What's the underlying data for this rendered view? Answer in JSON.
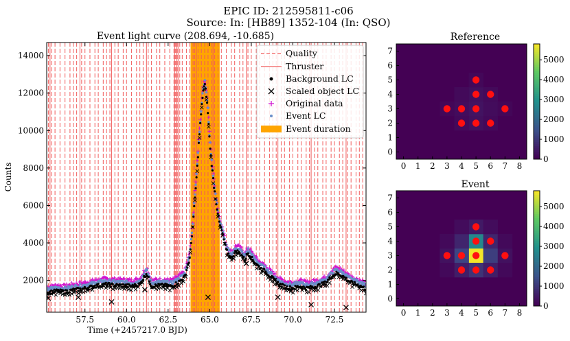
{
  "figure": {
    "suptitle_line1": "EPIC ID: 212595811-c06",
    "suptitle_line2": "Source: In: [HB89] 1352-104 (In: QSO)"
  },
  "chart_data": [
    {
      "type": "scatter",
      "title": "Event light curve (208.694, -10.685)",
      "xlabel": "Time (+2457217.0 BJD)",
      "ylabel": "Counts",
      "xlim": [
        55.2,
        74.4
      ],
      "ylim": [
        300,
        14700
      ],
      "xticks": [
        57.5,
        60.0,
        62.5,
        65.0,
        67.5,
        70.0,
        72.5
      ],
      "xtick_labels": [
        "57.5",
        "60.0",
        "62.5",
        "65.0",
        "67.5",
        "70.0",
        "72.5"
      ],
      "yticks": [
        2000,
        4000,
        6000,
        8000,
        10000,
        12000,
        14000
      ],
      "ytick_labels": [
        "2000",
        "4000",
        "6000",
        "8000",
        "10000",
        "12000",
        "14000"
      ],
      "event_duration": [
        63.85,
        65.6
      ],
      "quality_lines": [
        55.3,
        55.5,
        55.7,
        56.0,
        56.3,
        56.6,
        56.8,
        57.0,
        57.3,
        57.5,
        57.8,
        58.1,
        58.3,
        58.6,
        58.8,
        59.0,
        59.3,
        59.5,
        59.8,
        60.0,
        60.3,
        60.6,
        60.8,
        61.0,
        61.3,
        61.5,
        61.8,
        62.0,
        62.3,
        62.6,
        62.85,
        62.95,
        63.05,
        63.2,
        63.35,
        63.6,
        63.8,
        64.0,
        64.1,
        64.3,
        64.5,
        64.7,
        64.9,
        65.1,
        65.3,
        65.5,
        65.7,
        66.0,
        66.3,
        66.5,
        66.8,
        67.0,
        67.3,
        67.5,
        67.8,
        68.0,
        68.3,
        68.6,
        68.8,
        69.0,
        69.3,
        69.5,
        69.8,
        70.0,
        70.3,
        70.5,
        70.8,
        71.0,
        71.3,
        71.5,
        71.8,
        72.0,
        72.3,
        72.5,
        72.8,
        73.0,
        73.3,
        73.5,
        73.8,
        74.0,
        74.2
      ],
      "thruster_lines": [
        55.4,
        57.2,
        59.1,
        61.2,
        62.9,
        63.0,
        63.1,
        64.2,
        65.2,
        67.2,
        69.1,
        71.1,
        73.2
      ],
      "light_curve_nodes": {
        "x": [
          55.2,
          55.8,
          56.3,
          56.8,
          57.3,
          57.8,
          58.3,
          58.8,
          59.3,
          59.8,
          60.3,
          60.8,
          61.2,
          61.5,
          61.9,
          62.3,
          62.7,
          63.1,
          63.5,
          63.8,
          64.0,
          64.2,
          64.35,
          64.5,
          64.6,
          64.7,
          64.8,
          64.9,
          65.0,
          65.1,
          65.25,
          65.4,
          65.6,
          65.8,
          66.0,
          66.3,
          66.6,
          66.9,
          67.1,
          67.3,
          67.6,
          68.0,
          68.4,
          68.8,
          69.2,
          69.6,
          70.0,
          70.4,
          70.8,
          71.2,
          71.6,
          72.0,
          72.3,
          72.6,
          72.9,
          73.2,
          73.5,
          73.8,
          74.1,
          74.4
        ],
        "y": [
          1450,
          1550,
          1500,
          1600,
          1650,
          1750,
          1850,
          1900,
          1850,
          1850,
          1800,
          1900,
          2500,
          1800,
          1850,
          1850,
          1800,
          2000,
          2300,
          3300,
          5200,
          7500,
          9500,
          11200,
          12200,
          12600,
          12000,
          11000,
          9500,
          8500,
          7200,
          6200,
          5100,
          4500,
          3700,
          3300,
          3700,
          3500,
          3200,
          3600,
          3200,
          2800,
          2550,
          2200,
          1900,
          1750,
          1700,
          1800,
          1700,
          1750,
          1850,
          2000,
          2300,
          2500,
          2400,
          2200,
          2000,
          1900,
          1800,
          1650
        ]
      },
      "scaled_outliers": {
        "x": [
          55.3,
          57.1,
          59.1,
          61.1,
          64.9,
          67.2,
          68.9,
          69.1,
          71.1,
          73.2
        ],
        "y": [
          1050,
          1100,
          850,
          1500,
          1100,
          2900,
          2000,
          1100,
          700,
          550
        ]
      },
      "legend": {
        "location": "upper right",
        "entries": [
          {
            "label": "Quality",
            "style": "dashed-line",
            "color": "#f15a5a"
          },
          {
            "label": "Thruster",
            "style": "solid-line",
            "color": "#f15a5a"
          },
          {
            "label": "Background LC",
            "style": "dot",
            "color": "#000000"
          },
          {
            "label": "Scaled object LC",
            "style": "x",
            "color": "#000000"
          },
          {
            "label": "Original data",
            "style": "plus",
            "color": "#d012d0"
          },
          {
            "label": "Event LC",
            "style": "small-dot",
            "color": "#6b8fc9"
          },
          {
            "label": "Event duration",
            "style": "patch",
            "color": "#ffa500"
          }
        ]
      }
    },
    {
      "type": "heatmap",
      "title": "Reference",
      "xticks": [
        "0",
        "1",
        "2",
        "3",
        "4",
        "5",
        "6",
        "7",
        "8"
      ],
      "yticks": [
        "0",
        "1",
        "2",
        "3",
        "4",
        "5",
        "6",
        "7"
      ],
      "colorbar_ticks": [
        "0",
        "1000",
        "2000",
        "3000",
        "4000",
        "5000"
      ],
      "colorbar_range": [
        0,
        5800
      ],
      "cells": [
        {
          "x": 5,
          "y": 4,
          "value": 260
        },
        {
          "x": 4,
          "y": 3,
          "value": 200
        },
        {
          "x": 5,
          "y": 3,
          "value": 330
        },
        {
          "x": 6,
          "y": 3,
          "value": 200
        },
        {
          "x": 5,
          "y": 2,
          "value": 260
        },
        {
          "x": 4,
          "y": 2,
          "value": 150
        },
        {
          "x": 6,
          "y": 2,
          "value": 150
        },
        {
          "x": 6,
          "y": 4,
          "value": 160
        },
        {
          "x": 4,
          "y": 4,
          "value": 160
        },
        {
          "x": 3,
          "y": 3,
          "value": 100
        },
        {
          "x": 7,
          "y": 3,
          "value": 100
        },
        {
          "x": 5,
          "y": 5,
          "value": 120
        }
      ],
      "aperture_pixels": [
        [
          5,
          5
        ],
        [
          5,
          4
        ],
        [
          6,
          4
        ],
        [
          3,
          3
        ],
        [
          4,
          3
        ],
        [
          5,
          3
        ],
        [
          7,
          3
        ],
        [
          4,
          2
        ],
        [
          5,
          2
        ],
        [
          6,
          2
        ]
      ]
    },
    {
      "type": "heatmap",
      "title": "Event",
      "xticks": [
        "0",
        "1",
        "2",
        "3",
        "4",
        "5",
        "6",
        "7",
        "8"
      ],
      "yticks": [
        "0",
        "1",
        "2",
        "3",
        "4",
        "5",
        "6",
        "7"
      ],
      "colorbar_ticks": [
        "0",
        "1000",
        "2000",
        "3000",
        "4000",
        "5000"
      ],
      "colorbar_range": [
        0,
        5800
      ],
      "cells": [
        {
          "x": 5,
          "y": 3,
          "value": 5700
        },
        {
          "x": 5,
          "y": 4,
          "value": 2700
        },
        {
          "x": 4,
          "y": 3,
          "value": 1200
        },
        {
          "x": 6,
          "y": 3,
          "value": 1100
        },
        {
          "x": 5,
          "y": 2,
          "value": 900
        },
        {
          "x": 4,
          "y": 4,
          "value": 650
        },
        {
          "x": 6,
          "y": 4,
          "value": 650
        },
        {
          "x": 4,
          "y": 2,
          "value": 500
        },
        {
          "x": 6,
          "y": 2,
          "value": 500
        },
        {
          "x": 5,
          "y": 5,
          "value": 450
        },
        {
          "x": 3,
          "y": 3,
          "value": 300
        },
        {
          "x": 7,
          "y": 3,
          "value": 280
        },
        {
          "x": 3,
          "y": 4,
          "value": 150
        },
        {
          "x": 7,
          "y": 4,
          "value": 150
        },
        {
          "x": 3,
          "y": 2,
          "value": 150
        },
        {
          "x": 7,
          "y": 2,
          "value": 150
        },
        {
          "x": 4,
          "y": 5,
          "value": 200
        },
        {
          "x": 6,
          "y": 5,
          "value": 200
        }
      ],
      "aperture_pixels": [
        [
          5,
          5
        ],
        [
          5,
          4
        ],
        [
          6,
          4
        ],
        [
          3,
          3
        ],
        [
          4,
          3
        ],
        [
          5,
          3
        ],
        [
          7,
          3
        ],
        [
          4,
          2
        ],
        [
          5,
          2
        ],
        [
          6,
          2
        ]
      ]
    }
  ]
}
